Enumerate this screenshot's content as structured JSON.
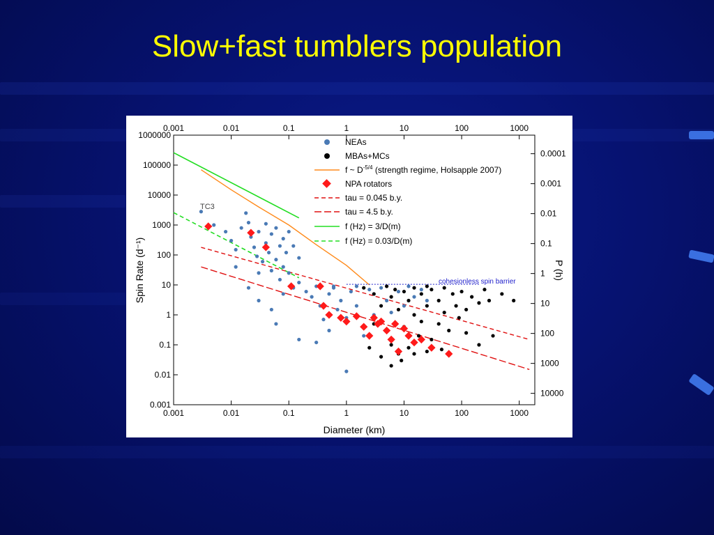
{
  "slide": {
    "title": "Slow+fast tumblers population"
  },
  "colors": {
    "background": "#061270",
    "title": "#ffff00",
    "neas": "#4a7ab5",
    "mbas": "#000000",
    "npa": "#ff1a1a",
    "strength": "#ff8a1a",
    "green": "#22dd22",
    "red_line": "#e01010",
    "barrier": "#2020cc"
  },
  "chart_data": {
    "type": "scatter",
    "xlabel": "Diameter (km)",
    "ylabel": "Spin Rate (d⁻¹)",
    "y2label": "P (h)",
    "xscale": "log",
    "yscale": "log",
    "xlim": [
      0.001,
      2000
    ],
    "ylim": [
      0.001,
      1000000
    ],
    "x_ticks": [
      "0.001",
      "0.01",
      "0.1",
      "1",
      "10",
      "100",
      "1000"
    ],
    "y_ticks": [
      "0.001",
      "0.01",
      "0.1",
      "1",
      "10",
      "100",
      "1000",
      "10000",
      "100000",
      "1000000"
    ],
    "y2_ticks": [
      "0.0001",
      "0.001",
      "0.01",
      "0.1",
      "1",
      "10",
      "100",
      "1000",
      "10000"
    ],
    "annotations": {
      "tc3": "TC3",
      "barrier": "cohesionless spin barrier"
    },
    "legend": {
      "position": "top-right",
      "neas": "NEAs",
      "mbas": "MBAs+MCs",
      "strength": "f ~ D",
      "strength_exp": "-5/4",
      "strength_note": " (strength regime, Holsapple 2007)",
      "npa": "NPA rotators",
      "tau1": "tau = 0.045 b.y.",
      "tau2": "tau = 4.5 b.y.",
      "green_solid": "f (Hz) = 3/D(m)",
      "green_dash": "f (Hz) = 0.03/D(m)"
    },
    "lines": [
      {
        "name": "strength",
        "x": [
          0.003,
          0.01,
          0.03,
          0.1,
          0.3,
          1,
          2.5
        ],
        "y": [
          70000,
          15000,
          4000,
          1000,
          220,
          45,
          10
        ]
      },
      {
        "name": "green_solid",
        "x": [
          0.001,
          0.15
        ],
        "y": [
          259200,
          1728
        ]
      },
      {
        "name": "green_dash",
        "x": [
          0.001,
          0.15
        ],
        "y": [
          2592,
          17.3
        ]
      },
      {
        "name": "tau1",
        "x": [
          0.003,
          1500
        ],
        "y": [
          180,
          0.15
        ]
      },
      {
        "name": "tau2",
        "x": [
          0.003,
          1500
        ],
        "y": [
          40,
          0.015
        ]
      },
      {
        "name": "barrier",
        "x": [
          1,
          200
        ],
        "y": [
          10.5,
          10.5
        ]
      }
    ],
    "neas_points": [
      [
        0.003,
        2800
      ],
      [
        0.004,
        900
      ],
      [
        0.005,
        1000
      ],
      [
        0.008,
        600
      ],
      [
        0.01,
        300
      ],
      [
        0.012,
        150
      ],
      [
        0.012,
        40
      ],
      [
        0.015,
        800
      ],
      [
        0.018,
        2500
      ],
      [
        0.02,
        1200
      ],
      [
        0.022,
        400
      ],
      [
        0.025,
        180
      ],
      [
        0.028,
        90
      ],
      [
        0.03,
        600
      ],
      [
        0.03,
        25
      ],
      [
        0.035,
        60
      ],
      [
        0.04,
        1100
      ],
      [
        0.04,
        250
      ],
      [
        0.045,
        120
      ],
      [
        0.05,
        500
      ],
      [
        0.05,
        30
      ],
      [
        0.06,
        800
      ],
      [
        0.06,
        70
      ],
      [
        0.07,
        200
      ],
      [
        0.07,
        15
      ],
      [
        0.08,
        350
      ],
      [
        0.08,
        40
      ],
      [
        0.09,
        120
      ],
      [
        0.1,
        600
      ],
      [
        0.1,
        25
      ],
      [
        0.12,
        200
      ],
      [
        0.12,
        8
      ],
      [
        0.15,
        80
      ],
      [
        0.15,
        12
      ],
      [
        0.2,
        6
      ],
      [
        0.25,
        4
      ],
      [
        0.3,
        9
      ],
      [
        0.35,
        2
      ],
      [
        0.4,
        0.7
      ],
      [
        0.5,
        5
      ],
      [
        0.5,
        0.3
      ],
      [
        0.6,
        8
      ],
      [
        0.7,
        1.5
      ],
      [
        0.8,
        3
      ],
      [
        1,
        0.8
      ],
      [
        1.2,
        6
      ],
      [
        1.5,
        2
      ],
      [
        2,
        0.2
      ],
      [
        2.5,
        7
      ],
      [
        3,
        1
      ],
      [
        3.5,
        0.5
      ],
      [
        4,
        8
      ],
      [
        5,
        3
      ],
      [
        6,
        1.2
      ],
      [
        8,
        6
      ],
      [
        10,
        2
      ],
      [
        12,
        9
      ],
      [
        15,
        4
      ],
      [
        20,
        7
      ],
      [
        25,
        3
      ],
      [
        0.06,
        0.5
      ],
      [
        0.15,
        0.15
      ],
      [
        0.3,
        0.12
      ],
      [
        1,
        0.013
      ],
      [
        0.03,
        3
      ],
      [
        0.05,
        1.5
      ],
      [
        0.02,
        8
      ],
      [
        0.08,
        5
      ],
      [
        0.6,
        9
      ],
      [
        1.5,
        9
      ]
    ],
    "mbas_points": [
      [
        2,
        8
      ],
      [
        3,
        5
      ],
      [
        3,
        0.5
      ],
      [
        4,
        2
      ],
      [
        5,
        9
      ],
      [
        5,
        0.3
      ],
      [
        6,
        4
      ],
      [
        6,
        0.1
      ],
      [
        7,
        7
      ],
      [
        8,
        1.5
      ],
      [
        8,
        0.05
      ],
      [
        10,
        6
      ],
      [
        10,
        0.4
      ],
      [
        12,
        3
      ],
      [
        12,
        0.08
      ],
      [
        15,
        8
      ],
      [
        15,
        1
      ],
      [
        18,
        0.2
      ],
      [
        20,
        5
      ],
      [
        20,
        0.6
      ],
      [
        25,
        9
      ],
      [
        25,
        2
      ],
      [
        30,
        0.15
      ],
      [
        30,
        7
      ],
      [
        40,
        3
      ],
      [
        40,
        0.5
      ],
      [
        50,
        8
      ],
      [
        50,
        1.2
      ],
      [
        60,
        0.3
      ],
      [
        70,
        5
      ],
      [
        80,
        2
      ],
      [
        90,
        0.8
      ],
      [
        100,
        6
      ],
      [
        120,
        1.5
      ],
      [
        150,
        4
      ],
      [
        200,
        2.5
      ],
      [
        250,
        7
      ],
      [
        300,
        3
      ],
      [
        500,
        5
      ],
      [
        800,
        3
      ],
      [
        4,
        0.04
      ],
      [
        6,
        0.02
      ],
      [
        9,
        0.03
      ],
      [
        15,
        0.05
      ],
      [
        25,
        0.06
      ],
      [
        45,
        0.07
      ],
      [
        120,
        0.25
      ],
      [
        200,
        0.1
      ],
      [
        2.5,
        0.08
      ],
      [
        350,
        0.2
      ]
    ],
    "npa_points": [
      [
        0.004,
        900
      ],
      [
        0.022,
        550
      ],
      [
        0.04,
        180
      ],
      [
        0.11,
        9
      ],
      [
        0.35,
        9
      ],
      [
        0.4,
        2
      ],
      [
        0.5,
        1
      ],
      [
        0.8,
        0.8
      ],
      [
        1,
        0.6
      ],
      [
        1.5,
        0.9
      ],
      [
        2,
        0.4
      ],
      [
        2.5,
        0.2
      ],
      [
        3,
        0.8
      ],
      [
        3.5,
        0.5
      ],
      [
        4,
        0.6
      ],
      [
        5,
        0.3
      ],
      [
        6,
        0.15
      ],
      [
        7,
        0.5
      ],
      [
        8,
        0.06
      ],
      [
        10,
        0.35
      ],
      [
        12,
        0.2
      ],
      [
        15,
        0.12
      ],
      [
        20,
        0.15
      ],
      [
        30,
        0.08
      ],
      [
        60,
        0.05
      ]
    ]
  }
}
